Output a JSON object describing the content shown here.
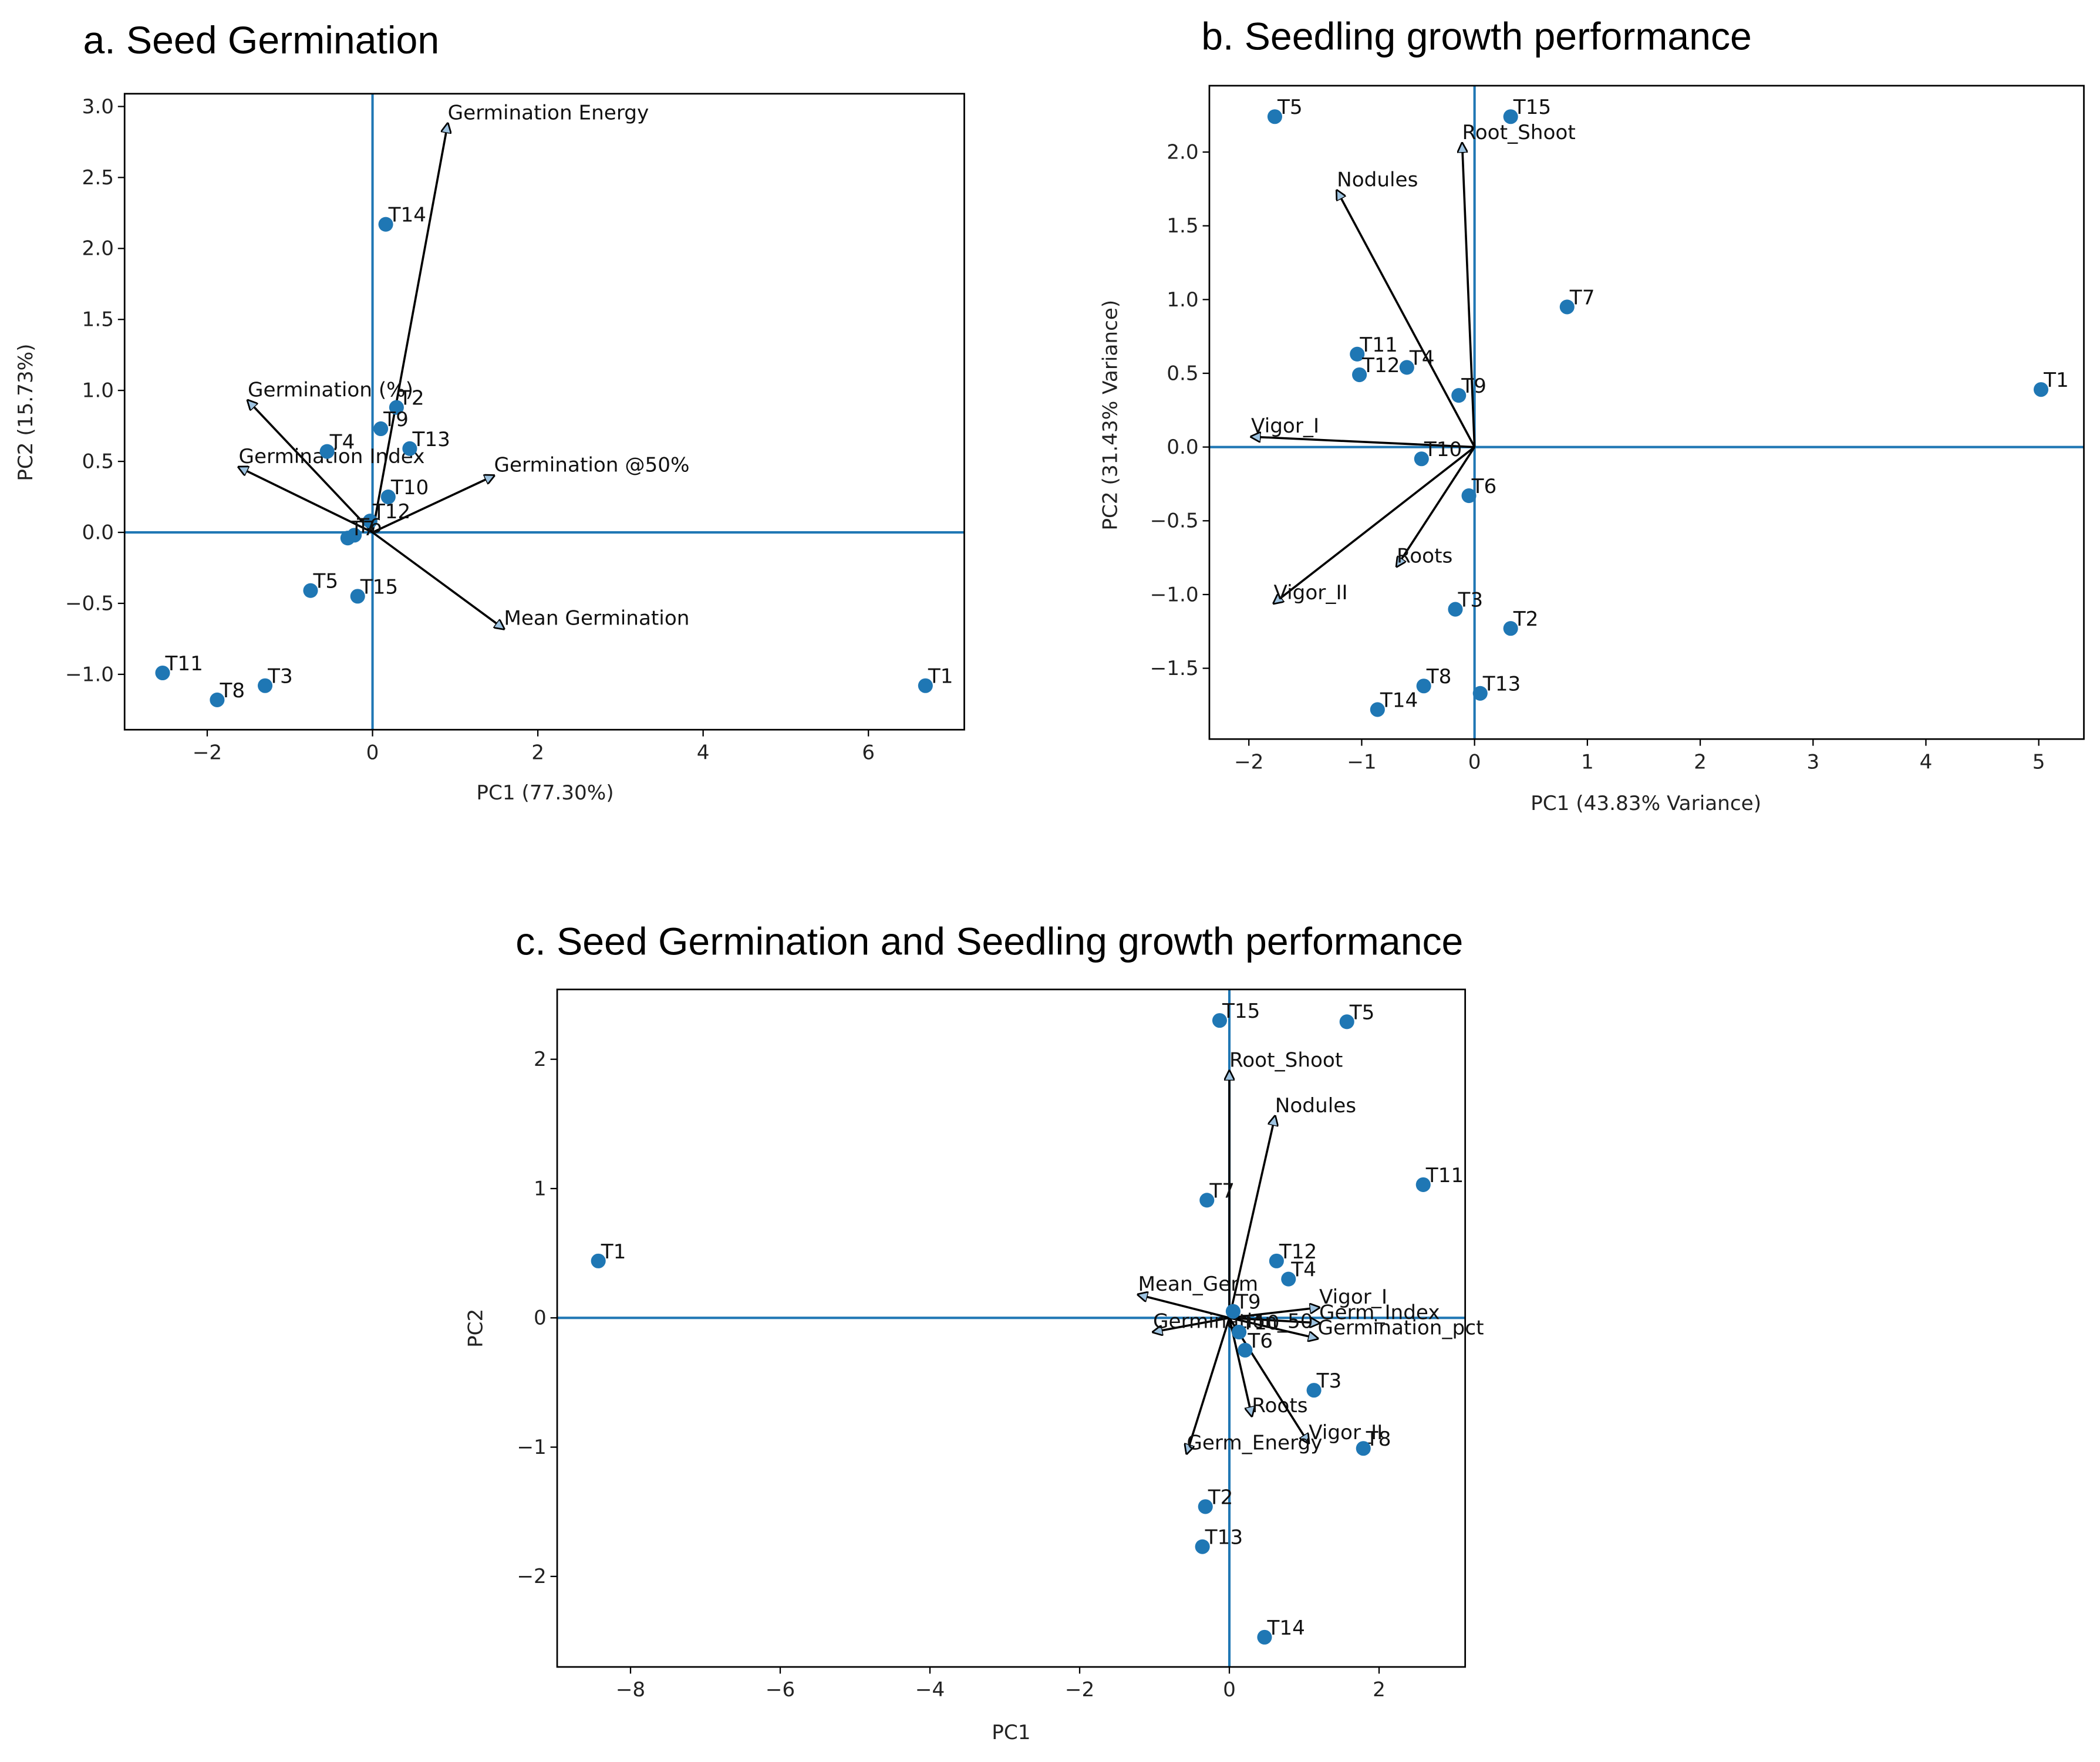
{
  "chart_data": [
    {
      "type": "biplot",
      "title": "a.  Seed Germination",
      "xlabel": "PC1 (77.30%)",
      "ylabel": "PC2 (15.73%)",
      "color": "#1f77b4",
      "arrow_color": "#000000",
      "xlim": [
        -3.0,
        7.16
      ],
      "ylim": [
        -1.39,
        3.09
      ],
      "xticks": [
        {
          "value": -2,
          "label": "−2"
        },
        0,
        2,
        4,
        6
      ],
      "yticks": [
        {
          "value": -1,
          "label": "−1.0"
        },
        {
          "value": -0.5,
          "label": "−0.5"
        },
        {
          "value": 0,
          "label": "0.0"
        },
        0.5,
        {
          "value": 1,
          "label": "1.0"
        },
        1.5,
        {
          "value": 2,
          "label": "2.0"
        },
        2.5,
        {
          "value": 3,
          "label": "3.0"
        }
      ],
      "points": {
        "labels": [
          "T14",
          "T2",
          "T9",
          "T13",
          "T4",
          "T10",
          "T12",
          "T6",
          "T7",
          "T5",
          "T15",
          "T11",
          "T8",
          "T3",
          "T1"
        ],
        "x": [
          0.16,
          0.29,
          0.1,
          0.45,
          -0.55,
          0.19,
          -0.03,
          -0.22,
          -0.3,
          -0.75,
          -0.18,
          -2.54,
          -1.88,
          -1.3,
          6.69
        ],
        "y": [
          2.17,
          0.88,
          0.73,
          0.59,
          0.57,
          0.25,
          0.08,
          -0.02,
          -0.04,
          -0.41,
          -0.45,
          -0.99,
          -1.18,
          -1.08,
          -1.08
        ]
      },
      "loadings": {
        "names": [
          "Germination Energy",
          "Germination (%)",
          "Germination Index",
          "Germination @50%",
          "Mean Germination"
        ],
        "x": [
          0.91,
          -1.51,
          -1.62,
          1.47,
          1.59
        ],
        "y": [
          2.88,
          0.93,
          0.46,
          0.4,
          -0.68
        ]
      }
    },
    {
      "type": "biplot",
      "title": "b. Seedling growth performance",
      "xlabel": "PC1 (43.83% Variance)",
      "ylabel": "PC2 (31.43% Variance)",
      "color": "#1f77b4",
      "arrow_color": "#000000",
      "xlim": [
        -2.35,
        5.4
      ],
      "ylim": [
        -1.98,
        2.45
      ],
      "xticks": [
        {
          "value": -2,
          "label": "−2"
        },
        {
          "value": -1,
          "label": "−1"
        },
        0,
        1,
        2,
        3,
        4,
        5
      ],
      "yticks": [
        {
          "value": -1.5,
          "label": "−1.5"
        },
        {
          "value": -1,
          "label": "−1.0"
        },
        {
          "value": -0.5,
          "label": "−0.5"
        },
        {
          "value": 0,
          "label": "0.0"
        },
        0.5,
        {
          "value": 1,
          "label": "1.0"
        },
        1.5,
        {
          "value": 2,
          "label": "2.0"
        }
      ],
      "points": {
        "labels": [
          "T5",
          "T15",
          "T7",
          "T1",
          "T11",
          "T12",
          "T4",
          "T9",
          "T10",
          "T6",
          "T3",
          "T2",
          "T8",
          "T13",
          "T14"
        ],
        "x": [
          -1.77,
          0.32,
          0.82,
          5.02,
          -1.04,
          -1.02,
          -0.6,
          -0.14,
          -0.47,
          -0.05,
          -0.17,
          0.32,
          -0.45,
          0.05,
          -0.86
        ],
        "y": [
          2.24,
          2.24,
          0.95,
          0.39,
          0.63,
          0.49,
          0.54,
          0.35,
          -0.08,
          -0.33,
          -1.1,
          -1.23,
          -1.62,
          -1.67,
          -1.78
        ]
      },
      "loadings": {
        "names": [
          "Root_Shoot",
          "Nodules",
          "Vigor_I",
          "Roots",
          "Vigor_II"
        ],
        "x": [
          -0.11,
          -1.22,
          -1.98,
          -0.69,
          -1.78
        ],
        "y": [
          2.06,
          1.74,
          0.07,
          -0.81,
          -1.06
        ]
      }
    },
    {
      "type": "biplot",
      "title": "c. Seed Germination and Seedling growth performance",
      "xlabel": "PC1",
      "ylabel": "PC2",
      "color": "#1f77b4",
      "arrow_color": "#000000",
      "xlim": [
        -8.98,
        3.15
      ],
      "ylim": [
        -2.7,
        2.54
      ],
      "xticks": [
        {
          "value": -8,
          "label": "−8"
        },
        {
          "value": -6,
          "label": "−6"
        },
        {
          "value": -4,
          "label": "−4"
        },
        {
          "value": -2,
          "label": "−2"
        },
        0,
        2
      ],
      "yticks": [
        {
          "value": -2,
          "label": "−2"
        },
        {
          "value": -1,
          "label": "−1"
        },
        0,
        1,
        2
      ],
      "points": {
        "labels": [
          "T15",
          "T5",
          "T11",
          "T7",
          "T1",
          "T12",
          "T4",
          "T9",
          "T10",
          "T6",
          "T3",
          "T8",
          "T2",
          "T13",
          "T14"
        ],
        "x": [
          -0.13,
          1.57,
          2.59,
          -0.3,
          -8.43,
          0.63,
          0.79,
          0.05,
          0.13,
          0.21,
          1.13,
          1.79,
          -0.32,
          -0.36,
          0.47
        ],
        "y": [
          2.3,
          2.29,
          1.03,
          0.91,
          0.44,
          0.44,
          0.3,
          0.05,
          -0.11,
          -0.25,
          -0.56,
          -1.01,
          -1.46,
          -1.77,
          -2.47
        ]
      },
      "loadings": {
        "names": [
          "Root_Shoot",
          "Nodules",
          "Mean_Germ",
          "Vigor_I",
          "Germ_Index",
          "Germination_pct",
          "Germination_50",
          "Roots",
          "Vigor_II",
          "Germ_Energy"
        ],
        "x": [
          0.0,
          0.61,
          -1.22,
          1.2,
          1.2,
          1.18,
          -1.02,
          0.3,
          1.06,
          -0.57
        ],
        "y": [
          1.91,
          1.56,
          0.18,
          0.08,
          -0.04,
          -0.16,
          -0.11,
          -0.76,
          -0.97,
          -1.05
        ]
      }
    }
  ]
}
